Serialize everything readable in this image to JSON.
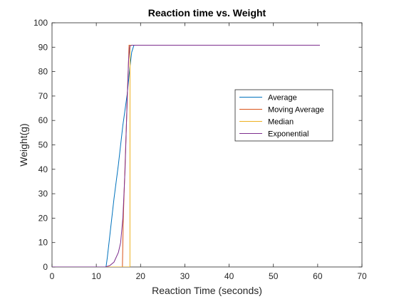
{
  "chart_data": {
    "type": "line",
    "title": "Reaction time vs. Weight",
    "xlabel": "Reaction Time (seconds)",
    "ylabel": "Weight(g)",
    "xlim": [
      0,
      70
    ],
    "ylim": [
      0,
      100
    ],
    "xticks": [
      0,
      10,
      20,
      30,
      40,
      50,
      60,
      70
    ],
    "yticks": [
      0,
      10,
      20,
      30,
      40,
      50,
      60,
      70,
      80,
      90,
      100
    ],
    "grid": false,
    "legend_position": "right",
    "series": [
      {
        "name": "Average",
        "color": "#0072BD",
        "x": [
          0,
          12.2,
          12.5,
          13.0,
          14.0,
          15.0,
          16.0,
          17.0,
          17.6,
          18.0,
          18.5,
          60.5
        ],
        "y": [
          0,
          0,
          4,
          12,
          28,
          42,
          58,
          71,
          82,
          88,
          90.8,
          90.8
        ]
      },
      {
        "name": "Moving Average",
        "color": "#D95319",
        "x": [
          0,
          15.9,
          16.1,
          17.4,
          17.6,
          60.5
        ],
        "y": [
          0,
          0,
          20,
          90.8,
          90.8,
          90.8
        ]
      },
      {
        "name": "Median",
        "color": "#EDB120",
        "x": [
          0,
          17.6,
          17.62,
          18.0,
          60.5
        ],
        "y": [
          0,
          0,
          90.8,
          90.8,
          90.8
        ]
      },
      {
        "name": "Exponential",
        "color": "#7E2F8E",
        "x": [
          0,
          12.0,
          13.0,
          14.0,
          15.0,
          15.5,
          16.0,
          16.5,
          17.0,
          17.3,
          17.6,
          18.0,
          18.3,
          60.5
        ],
        "y": [
          0,
          0,
          0.5,
          2,
          6,
          10,
          20,
          40,
          70,
          85,
          90.5,
          90.8,
          90.8,
          90.8
        ]
      }
    ]
  }
}
